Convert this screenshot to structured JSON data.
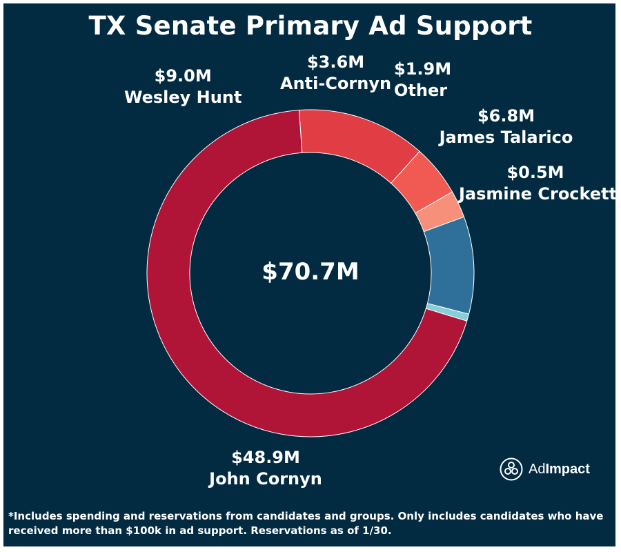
{
  "chart_data": {
    "type": "pie",
    "title": "TX Senate Primary Ad Support",
    "total_label": "$70.7M",
    "slices": [
      {
        "name": "Wesley Hunt",
        "label": "$9.0M",
        "value": 9.0,
        "color": "#e03e44"
      },
      {
        "name": "Anti-Cornyn",
        "label": "$3.6M",
        "value": 3.6,
        "color": "#f05a52"
      },
      {
        "name": "Other",
        "label": "$1.9M",
        "value": 1.9,
        "color": "#f6907a"
      },
      {
        "name": "James Talarico",
        "label": "$6.8M",
        "value": 6.8,
        "color": "#2f709b"
      },
      {
        "name": "Jasmine Crockett",
        "label": "$0.5M",
        "value": 0.5,
        "color": "#86cfd9"
      },
      {
        "name": "John Cornyn",
        "label": "$48.9M",
        "value": 48.9,
        "color": "#b01538"
      }
    ]
  },
  "footnote": "*Includes spending and reservations from candidates and groups. Only includes candidates who have received more than $100k in ad support. Reservations as of 1/30.",
  "brand": {
    "name_regular": "Ad",
    "name_bold": "Impact"
  },
  "colors": {
    "background": "#022b42",
    "text": "#ffffff"
  }
}
